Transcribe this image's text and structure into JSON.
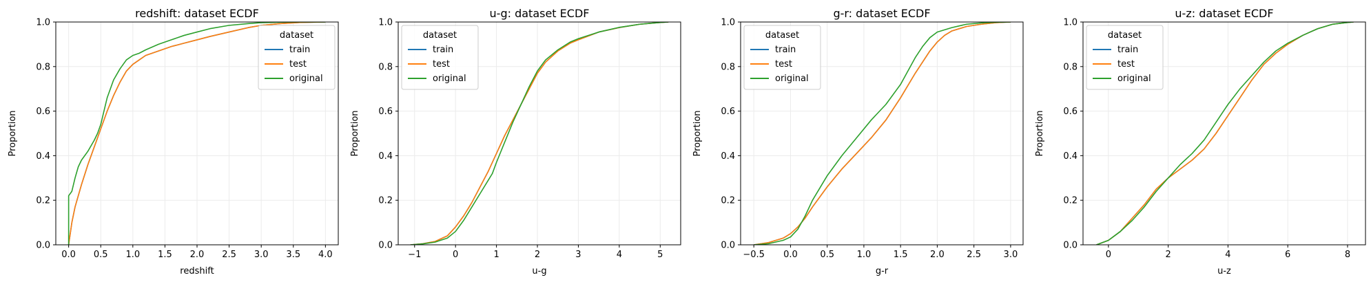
{
  "figure": {
    "background": "#ffffff"
  },
  "chart_data": [
    {
      "type": "line",
      "title": "redshift: dataset ECDF",
      "xlabel": "redshift",
      "ylabel": "Proportion",
      "xlim": [
        -0.2,
        4.2
      ],
      "ylim": [
        0,
        1.0
      ],
      "xticks": [
        0.0,
        0.5,
        1.0,
        1.5,
        2.0,
        2.5,
        3.0,
        3.5,
        4.0
      ],
      "xtick_labels": [
        "0.0",
        "0.5",
        "1.0",
        "1.5",
        "2.0",
        "2.5",
        "3.0",
        "3.5",
        "4.0"
      ],
      "yticks": [
        0.0,
        0.2,
        0.4,
        0.6,
        0.8,
        1.0
      ],
      "ytick_labels": [
        "0.0",
        "0.2",
        "0.4",
        "0.6",
        "0.8",
        "1.0"
      ],
      "grid": true,
      "legend": {
        "title": "dataset",
        "position": "top-right",
        "entries": [
          "train",
          "test",
          "original"
        ]
      },
      "series": [
        {
          "name": "train",
          "color": "#1f77b4",
          "x": [
            0.0,
            0.05,
            0.1,
            0.2,
            0.3,
            0.4,
            0.5,
            0.6,
            0.7,
            0.8,
            0.9,
            1.0,
            1.1,
            1.2,
            1.4,
            1.6,
            1.8,
            2.0,
            2.2,
            2.5,
            2.8,
            3.0,
            3.3,
            3.6,
            4.0
          ],
          "y": [
            0.0,
            0.1,
            0.17,
            0.27,
            0.36,
            0.44,
            0.52,
            0.6,
            0.67,
            0.73,
            0.78,
            0.81,
            0.83,
            0.85,
            0.87,
            0.89,
            0.905,
            0.92,
            0.935,
            0.955,
            0.975,
            0.985,
            0.993,
            0.998,
            1.0
          ]
        },
        {
          "name": "test",
          "color": "#ff7f0e",
          "x": [
            0.0,
            0.05,
            0.1,
            0.2,
            0.3,
            0.4,
            0.5,
            0.6,
            0.7,
            0.8,
            0.9,
            1.0,
            1.1,
            1.2,
            1.4,
            1.6,
            1.8,
            2.0,
            2.2,
            2.5,
            2.8,
            3.0,
            3.3,
            3.6,
            4.0
          ],
          "y": [
            0.0,
            0.1,
            0.17,
            0.27,
            0.36,
            0.44,
            0.52,
            0.6,
            0.67,
            0.73,
            0.78,
            0.81,
            0.83,
            0.85,
            0.87,
            0.89,
            0.905,
            0.92,
            0.935,
            0.955,
            0.975,
            0.985,
            0.993,
            0.998,
            1.0
          ]
        },
        {
          "name": "original",
          "color": "#2ca02c",
          "x": [
            0.0,
            0.0,
            0.05,
            0.1,
            0.15,
            0.2,
            0.3,
            0.4,
            0.45,
            0.5,
            0.55,
            0.6,
            0.7,
            0.8,
            0.9,
            1.0,
            1.1,
            1.2,
            1.4,
            1.6,
            1.8,
            2.0,
            2.2,
            2.5,
            2.8,
            3.0,
            3.3,
            3.6,
            4.0
          ],
          "y": [
            0.0,
            0.22,
            0.24,
            0.3,
            0.35,
            0.38,
            0.42,
            0.47,
            0.5,
            0.54,
            0.6,
            0.66,
            0.74,
            0.79,
            0.83,
            0.85,
            0.86,
            0.875,
            0.9,
            0.92,
            0.94,
            0.955,
            0.97,
            0.985,
            0.993,
            0.997,
            0.999,
            1.0,
            1.0
          ]
        }
      ]
    },
    {
      "type": "line",
      "title": "u-g: dataset ECDF",
      "xlabel": "u-g",
      "ylabel": "Proportion",
      "xlim": [
        -1.4,
        5.5
      ],
      "ylim": [
        0,
        1.0
      ],
      "xticks": [
        -1,
        0,
        1,
        2,
        3,
        4,
        5
      ],
      "xtick_labels": [
        "−1",
        "0",
        "1",
        "2",
        "3",
        "4",
        "5"
      ],
      "yticks": [
        0.0,
        0.2,
        0.4,
        0.6,
        0.8,
        1.0
      ],
      "ytick_labels": [
        "0.0",
        "0.2",
        "0.4",
        "0.6",
        "0.8",
        "1.0"
      ],
      "grid": true,
      "legend": {
        "title": "dataset",
        "position": "top-left",
        "entries": [
          "train",
          "test",
          "original"
        ]
      },
      "series": [
        {
          "name": "train",
          "color": "#1f77b4",
          "x": [
            -1.1,
            -0.8,
            -0.5,
            -0.2,
            0.0,
            0.2,
            0.4,
            0.6,
            0.8,
            1.0,
            1.2,
            1.4,
            1.6,
            1.8,
            2.0,
            2.2,
            2.5,
            2.8,
            3.0,
            3.5,
            4.0,
            4.5,
            5.0,
            5.2
          ],
          "y": [
            0.0,
            0.005,
            0.015,
            0.04,
            0.08,
            0.13,
            0.19,
            0.26,
            0.33,
            0.41,
            0.49,
            0.56,
            0.63,
            0.7,
            0.77,
            0.82,
            0.87,
            0.905,
            0.92,
            0.955,
            0.975,
            0.99,
            0.998,
            1.0
          ]
        },
        {
          "name": "test",
          "color": "#ff7f0e",
          "x": [
            -1.1,
            -0.8,
            -0.5,
            -0.2,
            0.0,
            0.2,
            0.4,
            0.6,
            0.8,
            1.0,
            1.2,
            1.4,
            1.6,
            1.8,
            2.0,
            2.2,
            2.5,
            2.8,
            3.0,
            3.5,
            4.0,
            4.5,
            5.0,
            5.2
          ],
          "y": [
            0.0,
            0.005,
            0.015,
            0.04,
            0.08,
            0.13,
            0.19,
            0.26,
            0.33,
            0.41,
            0.49,
            0.56,
            0.63,
            0.7,
            0.77,
            0.82,
            0.87,
            0.905,
            0.92,
            0.955,
            0.975,
            0.99,
            0.998,
            1.0
          ]
        },
        {
          "name": "original",
          "color": "#2ca02c",
          "x": [
            -1.1,
            -0.8,
            -0.5,
            -0.2,
            0.0,
            0.2,
            0.4,
            0.6,
            0.8,
            0.9,
            1.0,
            1.2,
            1.4,
            1.6,
            1.8,
            2.0,
            2.2,
            2.5,
            2.8,
            3.0,
            3.5,
            4.0,
            4.5,
            5.0,
            5.2
          ],
          "y": [
            0.0,
            0.004,
            0.012,
            0.03,
            0.06,
            0.11,
            0.17,
            0.23,
            0.29,
            0.32,
            0.37,
            0.46,
            0.55,
            0.63,
            0.71,
            0.78,
            0.83,
            0.875,
            0.91,
            0.925,
            0.955,
            0.976,
            0.99,
            0.998,
            1.0
          ]
        }
      ]
    },
    {
      "type": "line",
      "title": "g-r: dataset ECDF",
      "xlabel": "g-r",
      "ylabel": "Proportion",
      "xlim": [
        -0.68,
        3.17
      ],
      "ylim": [
        0,
        1.0
      ],
      "xticks": [
        -0.5,
        0.0,
        0.5,
        1.0,
        1.5,
        2.0,
        2.5,
        3.0
      ],
      "xtick_labels": [
        "−0.5",
        "0.0",
        "0.5",
        "1.0",
        "1.5",
        "2.0",
        "2.5",
        "3.0"
      ],
      "yticks": [
        0.0,
        0.2,
        0.4,
        0.6,
        0.8,
        1.0
      ],
      "ytick_labels": [
        "0.0",
        "0.2",
        "0.4",
        "0.6",
        "0.8",
        "1.0"
      ],
      "grid": true,
      "legend": {
        "title": "dataset",
        "position": "top-left",
        "entries": [
          "train",
          "test",
          "original"
        ]
      },
      "series": [
        {
          "name": "train",
          "color": "#1f77b4",
          "x": [
            -0.5,
            -0.3,
            -0.1,
            0.0,
            0.1,
            0.2,
            0.3,
            0.5,
            0.7,
            0.9,
            1.1,
            1.3,
            1.5,
            1.7,
            1.9,
            2.0,
            2.1,
            2.2,
            2.4,
            2.6,
            2.8,
            3.0
          ],
          "y": [
            0.0,
            0.01,
            0.03,
            0.05,
            0.08,
            0.12,
            0.17,
            0.26,
            0.34,
            0.41,
            0.48,
            0.56,
            0.66,
            0.77,
            0.87,
            0.91,
            0.94,
            0.96,
            0.98,
            0.99,
            0.997,
            1.0
          ]
        },
        {
          "name": "test",
          "color": "#ff7f0e",
          "x": [
            -0.5,
            -0.3,
            -0.1,
            0.0,
            0.1,
            0.2,
            0.3,
            0.5,
            0.7,
            0.9,
            1.1,
            1.3,
            1.5,
            1.7,
            1.9,
            2.0,
            2.1,
            2.2,
            2.4,
            2.6,
            2.8,
            3.0
          ],
          "y": [
            0.0,
            0.01,
            0.03,
            0.05,
            0.08,
            0.12,
            0.17,
            0.26,
            0.34,
            0.41,
            0.48,
            0.56,
            0.66,
            0.77,
            0.87,
            0.91,
            0.94,
            0.96,
            0.98,
            0.99,
            0.997,
            1.0
          ]
        },
        {
          "name": "original",
          "color": "#2ca02c",
          "x": [
            -0.5,
            -0.3,
            -0.1,
            0.0,
            0.1,
            0.2,
            0.3,
            0.5,
            0.7,
            0.9,
            1.1,
            1.3,
            1.5,
            1.7,
            1.8,
            1.9,
            2.0,
            2.2,
            2.4,
            2.6,
            2.8,
            3.0
          ],
          "y": [
            0.0,
            0.005,
            0.02,
            0.035,
            0.07,
            0.13,
            0.2,
            0.31,
            0.4,
            0.48,
            0.56,
            0.63,
            0.72,
            0.84,
            0.89,
            0.93,
            0.955,
            0.975,
            0.99,
            0.996,
            0.999,
            1.0
          ]
        }
      ]
    },
    {
      "type": "line",
      "title": "u-z: dataset ECDF",
      "xlabel": "u-z",
      "ylabel": "Proportion",
      "xlim": [
        -0.85,
        8.6
      ],
      "ylim": [
        0,
        1.0
      ],
      "xticks": [
        0,
        2,
        4,
        6,
        8
      ],
      "xtick_labels": [
        "0",
        "2",
        "4",
        "6",
        "8"
      ],
      "yticks": [
        0.0,
        0.2,
        0.4,
        0.6,
        0.8,
        1.0
      ],
      "ytick_labels": [
        "0.0",
        "0.2",
        "0.4",
        "0.6",
        "0.8",
        "1.0"
      ],
      "grid": true,
      "legend": {
        "title": "dataset",
        "position": "top-left",
        "entries": [
          "train",
          "test",
          "original"
        ]
      },
      "series": [
        {
          "name": "train",
          "color": "#1f77b4",
          "x": [
            -0.4,
            0.0,
            0.4,
            0.8,
            1.2,
            1.6,
            2.0,
            2.4,
            2.8,
            3.2,
            3.6,
            4.0,
            4.4,
            4.8,
            5.2,
            5.6,
            6.0,
            6.5,
            7.0,
            7.5,
            8.0,
            8.2
          ],
          "y": [
            0.0,
            0.02,
            0.06,
            0.12,
            0.18,
            0.25,
            0.3,
            0.34,
            0.38,
            0.43,
            0.5,
            0.58,
            0.66,
            0.74,
            0.81,
            0.86,
            0.9,
            0.94,
            0.97,
            0.99,
            0.998,
            1.0
          ]
        },
        {
          "name": "test",
          "color": "#ff7f0e",
          "x": [
            -0.4,
            0.0,
            0.4,
            0.8,
            1.2,
            1.6,
            2.0,
            2.4,
            2.8,
            3.2,
            3.6,
            4.0,
            4.4,
            4.8,
            5.2,
            5.6,
            6.0,
            6.5,
            7.0,
            7.5,
            8.0,
            8.2
          ],
          "y": [
            0.0,
            0.02,
            0.06,
            0.12,
            0.18,
            0.25,
            0.3,
            0.34,
            0.38,
            0.43,
            0.5,
            0.58,
            0.66,
            0.74,
            0.81,
            0.86,
            0.9,
            0.94,
            0.97,
            0.99,
            0.998,
            1.0
          ]
        },
        {
          "name": "original",
          "color": "#2ca02c",
          "x": [
            -0.4,
            0.0,
            0.4,
            0.8,
            1.2,
            1.6,
            2.0,
            2.4,
            2.8,
            3.2,
            3.6,
            4.0,
            4.4,
            4.8,
            5.2,
            5.6,
            6.0,
            6.5,
            7.0,
            7.5,
            8.0,
            8.2
          ],
          "y": [
            0.0,
            0.02,
            0.06,
            0.11,
            0.17,
            0.24,
            0.3,
            0.36,
            0.41,
            0.47,
            0.55,
            0.63,
            0.7,
            0.76,
            0.82,
            0.87,
            0.905,
            0.94,
            0.97,
            0.99,
            0.998,
            1.0
          ]
        }
      ]
    }
  ]
}
